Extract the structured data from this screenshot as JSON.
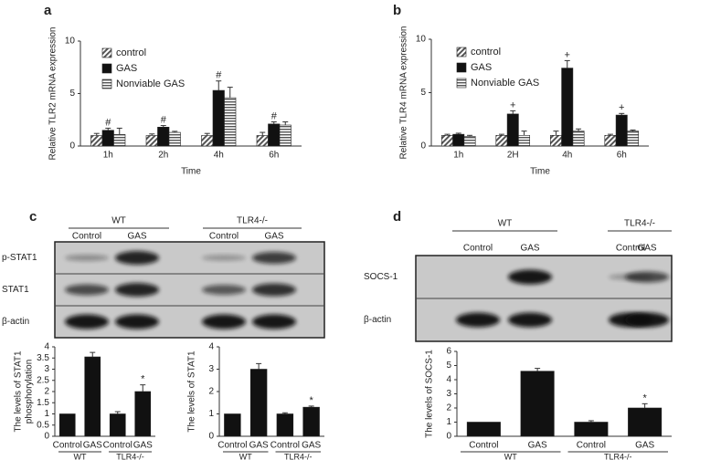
{
  "panels": [
    "a",
    "b",
    "c",
    "d"
  ],
  "blots": [
    {
      "groups": [
        "WT",
        "TLR4-/-"
      ],
      "lanes": [
        "Control",
        "GAS",
        "Control",
        "GAS"
      ],
      "rows": [
        "p-STAT1",
        "STAT1",
        "β-actin"
      ]
    },
    {
      "groups": [
        "WT",
        "TLR4-/-"
      ],
      "lanes": [
        "Control",
        "GAS",
        "Control",
        "GAS"
      ],
      "rows": [
        "SOCS-1",
        "β-actin"
      ]
    }
  ],
  "chart_data": [
    {
      "type": "bar",
      "ylabel": [
        "Relative TLR2 mRNA expression"
      ],
      "xlabel": "Time",
      "categories": [
        "1h",
        "2h",
        "4h",
        "6h"
      ],
      "ylim": [
        0,
        10
      ],
      "yticks": [
        0,
        5,
        10
      ],
      "legend": "top-left",
      "series": [
        {
          "name": "control",
          "color": "#555555",
          "pattern": "diagonal",
          "values": [
            1,
            1,
            1,
            1
          ],
          "errors": [
            0.2,
            0.15,
            0.2,
            0.3
          ]
        },
        {
          "name": "GAS",
          "color": "#111111",
          "pattern": "solid",
          "values": [
            1.5,
            1.8,
            5.3,
            2.1
          ],
          "errors": [
            0.2,
            0.15,
            0.9,
            0.2
          ],
          "significance": [
            "#",
            "#",
            "#",
            "#"
          ]
        },
        {
          "name": "Nonviable GAS",
          "color": "#555555",
          "pattern": "horizontal",
          "values": [
            1.1,
            1.3,
            4.6,
            2.0
          ],
          "errors": [
            0.6,
            0.1,
            1.0,
            0.3
          ]
        }
      ]
    },
    {
      "type": "bar",
      "ylabel": [
        "Relative TLR4 mRNA expression"
      ],
      "xlabel": "Time",
      "categories": [
        "1h",
        "2H",
        "4h",
        "6h"
      ],
      "ylim": [
        0,
        10
      ],
      "yticks": [
        0,
        5,
        10
      ],
      "legend": "top-left",
      "series": [
        {
          "name": "control",
          "color": "#555555",
          "pattern": "diagonal",
          "values": [
            1,
            1,
            1,
            1
          ],
          "errors": [
            0.1,
            0.1,
            0.4,
            0.1
          ]
        },
        {
          "name": "GAS",
          "color": "#111111",
          "pattern": "solid",
          "values": [
            1.1,
            3.0,
            7.3,
            2.9
          ],
          "errors": [
            0.1,
            0.3,
            0.7,
            0.15
          ],
          "significance": [
            null,
            "+",
            "+",
            "+"
          ]
        },
        {
          "name": "Nonviable GAS",
          "color": "#555555",
          "pattern": "horizontal",
          "values": [
            0.9,
            1.0,
            1.4,
            1.4
          ],
          "errors": [
            0.1,
            0.4,
            0.2,
            0.1
          ]
        }
      ]
    },
    {
      "type": "bar",
      "ylabel": [
        "The levels of STAT1",
        "phosphorylation"
      ],
      "categories": [
        "Control",
        "GAS",
        "Control",
        "GAS"
      ],
      "groups": [
        "WT",
        "TLR4-/-"
      ],
      "color": "#111111",
      "values": [
        1,
        3.55,
        1,
        2.0
      ],
      "errors": [
        0,
        0.2,
        0.1,
        0.3
      ],
      "significance": [
        null,
        null,
        null,
        "*"
      ],
      "ylim": [
        0,
        4
      ],
      "yticks": [
        0,
        0.5,
        1,
        1.5,
        2,
        2.5,
        3,
        3.5,
        4
      ]
    },
    {
      "type": "bar",
      "ylabel": [
        "The levels of STAT1"
      ],
      "categories": [
        "Control",
        "GAS",
        "Control",
        "GAS"
      ],
      "groups": [
        "WT",
        "TLR4-/-"
      ],
      "color": "#111111",
      "values": [
        1,
        3.0,
        1,
        1.3
      ],
      "errors": [
        0,
        0.25,
        0.05,
        0.05
      ],
      "significance": [
        null,
        null,
        null,
        "*"
      ],
      "ylim": [
        0,
        4
      ],
      "yticks": [
        0,
        1,
        2,
        3,
        4
      ]
    },
    {
      "type": "bar",
      "ylabel": [
        "The levels of SOCS-1"
      ],
      "categories": [
        "Control",
        "GAS",
        "Control",
        "GAS"
      ],
      "groups": [
        "WT",
        "TLR4-/-"
      ],
      "color": "#111111",
      "values": [
        1,
        4.6,
        1,
        2.0
      ],
      "errors": [
        0,
        0.2,
        0.1,
        0.3
      ],
      "significance": [
        null,
        null,
        null,
        "*"
      ],
      "ylim": [
        0,
        6
      ],
      "yticks": [
        0,
        1,
        2,
        3,
        4,
        5,
        6
      ]
    }
  ]
}
